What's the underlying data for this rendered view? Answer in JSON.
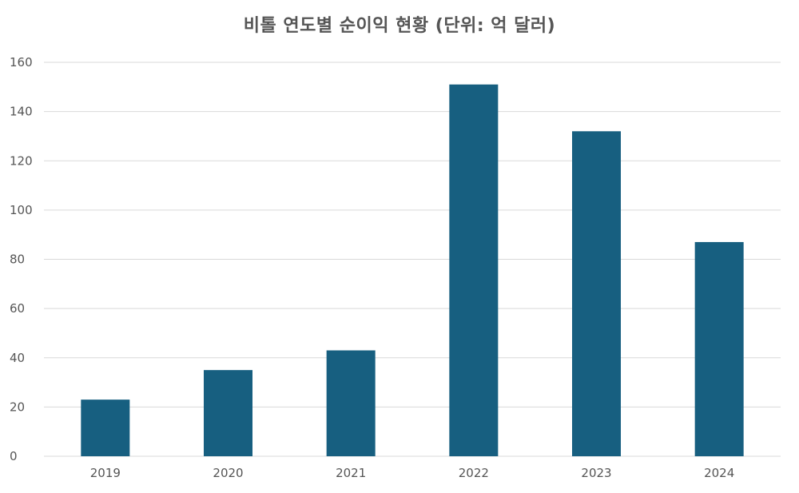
{
  "chart_data": {
    "type": "bar",
    "title": "비톨 연도별 순이익 현황 (단위: 억 달러)",
    "xlabel": "",
    "ylabel": "",
    "categories": [
      "2019",
      "2020",
      "2021",
      "2022",
      "2023",
      "2024"
    ],
    "values": [
      23,
      35,
      43,
      151,
      132,
      87
    ],
    "ylim": [
      0,
      160
    ],
    "yticks": [
      0,
      20,
      40,
      60,
      80,
      100,
      120,
      140,
      160
    ],
    "grid": true,
    "legend": "none",
    "bar_color": "#175f80",
    "grid_color": "#d9d9d9"
  }
}
